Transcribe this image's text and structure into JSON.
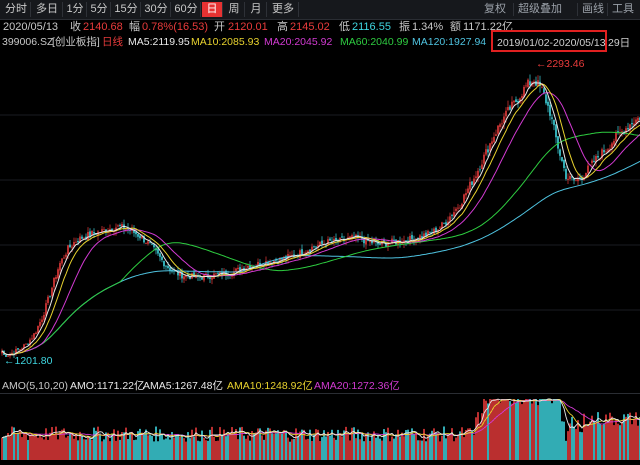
{
  "toolbar": {
    "periods": [
      {
        "label": "分时",
        "active": false
      },
      {
        "label": "多日",
        "active": false
      },
      {
        "label": "1分",
        "active": false
      },
      {
        "label": "5分",
        "active": false
      },
      {
        "label": "15分",
        "active": false
      },
      {
        "label": "30分",
        "active": false
      },
      {
        "label": "60分",
        "active": false
      },
      {
        "label": "日",
        "active": true
      },
      {
        "label": "周",
        "active": false
      },
      {
        "label": "月",
        "active": false
      },
      {
        "label": "更多",
        "active": false
      }
    ],
    "right_items": [
      "复权",
      "超级叠加",
      "画线",
      "工具"
    ]
  },
  "quote": {
    "date": "2020/05/13",
    "close_label": "收",
    "close_value": "2140.68",
    "change_label": "幅",
    "change_value": "0.78%(16.53)",
    "open_label": "开",
    "open_value": "2120.01",
    "high_label": "高",
    "high_value": "2145.02",
    "low_label": "低",
    "low_value": "2116.55",
    "amp_label": "振",
    "amp_value": "1.34%",
    "amount_label": "额",
    "amount_value": "1171.22亿"
  },
  "ma_legend": {
    "symbol": "399006.SZ",
    "name": "[创业板指]",
    "period": "日线",
    "ma5": "MA5:2119.95",
    "ma10": "MA10:2085.93",
    "ma20": "MA20:2045.92",
    "ma60": "MA60:2040.99",
    "ma120": "MA120:1927.94",
    "date_range": "2019/01/02-2020/05/13",
    "date_range_overflow": "29日"
  },
  "annotations": {
    "high_marker": "2293.46",
    "low_marker": "1201.80"
  },
  "volume_legend": {
    "title": "AMO(5,10,20)",
    "amo": "AMO:1171.22亿",
    "ama5": "AMA5:1267.48亿",
    "ama10": "AMA10:1248.92亿",
    "ama20": "AMA20:1272.36亿"
  },
  "colors": {
    "up": "#e83b3b",
    "down": "#3fd6e0",
    "ma5": "#e8e8e8",
    "ma10": "#e8d22e",
    "ma20": "#d23ad2",
    "ma60": "#2ecc40",
    "ma120": "#4fc3e0",
    "accent": "#e63232",
    "range_box": "#e02020"
  },
  "chart_data": {
    "type": "candlestick",
    "x_range": [
      "2019/01/02",
      "2020/05/13"
    ],
    "ylim": [
      1150,
      2350
    ],
    "max_point": 2293.46,
    "min_point": 1201.8,
    "trend": [
      1201.8,
      1210,
      1225,
      1248,
      1290,
      1360,
      1460,
      1560,
      1620,
      1655,
      1670,
      1682,
      1690,
      1700,
      1710,
      1705,
      1690,
      1670,
      1640,
      1600,
      1560,
      1530,
      1520,
      1515,
      1510,
      1515,
      1520,
      1525,
      1530,
      1540,
      1555,
      1560,
      1570,
      1575,
      1580,
      1590,
      1600,
      1615,
      1630,
      1640,
      1650,
      1650,
      1660,
      1665,
      1660,
      1650,
      1640,
      1645,
      1650,
      1655,
      1660,
      1670,
      1680,
      1695,
      1720,
      1760,
      1800,
      1860,
      1920,
      1990,
      2060,
      2120,
      2170,
      2210,
      2260,
      2290,
      2250,
      2160,
      2020,
      1905,
      1890,
      1910,
      1950,
      1990,
      2020,
      2060,
      2090,
      2120,
      2140.68
    ]
  }
}
